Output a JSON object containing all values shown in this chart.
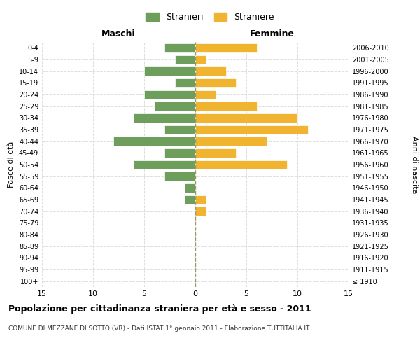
{
  "age_groups": [
    "100+",
    "95-99",
    "90-94",
    "85-89",
    "80-84",
    "75-79",
    "70-74",
    "65-69",
    "60-64",
    "55-59",
    "50-54",
    "45-49",
    "40-44",
    "35-39",
    "30-34",
    "25-29",
    "20-24",
    "15-19",
    "10-14",
    "5-9",
    "0-4"
  ],
  "birth_years": [
    "≤ 1910",
    "1911-1915",
    "1916-1920",
    "1921-1925",
    "1926-1930",
    "1931-1935",
    "1936-1940",
    "1941-1945",
    "1946-1950",
    "1951-1955",
    "1956-1960",
    "1961-1965",
    "1966-1970",
    "1971-1975",
    "1976-1980",
    "1981-1985",
    "1986-1990",
    "1991-1995",
    "1996-2000",
    "2001-2005",
    "2006-2010"
  ],
  "maschi": [
    0,
    0,
    0,
    0,
    0,
    0,
    0,
    1,
    1,
    3,
    6,
    3,
    8,
    3,
    6,
    4,
    5,
    2,
    5,
    2,
    3
  ],
  "femmine": [
    0,
    0,
    0,
    0,
    0,
    0,
    1,
    1,
    0,
    0,
    9,
    4,
    7,
    11,
    10,
    6,
    2,
    4,
    3,
    1,
    6
  ],
  "male_color": "#6d9e5c",
  "female_color": "#f0b430",
  "title": "Popolazione per cittadinanza straniera per età e sesso - 2011",
  "subtitle": "COMUNE DI MEZZANE DI SOTTO (VR) - Dati ISTAT 1° gennaio 2011 - Elaborazione TUTTITALIA.IT",
  "xlabel_left": "Maschi",
  "xlabel_right": "Femmine",
  "ylabel_left": "Fasce di età",
  "ylabel_right": "Anni di nascita",
  "legend_male": "Stranieri",
  "legend_female": "Straniere",
  "xlim": 15,
  "background_color": "#ffffff",
  "grid_color": "#dddddd"
}
